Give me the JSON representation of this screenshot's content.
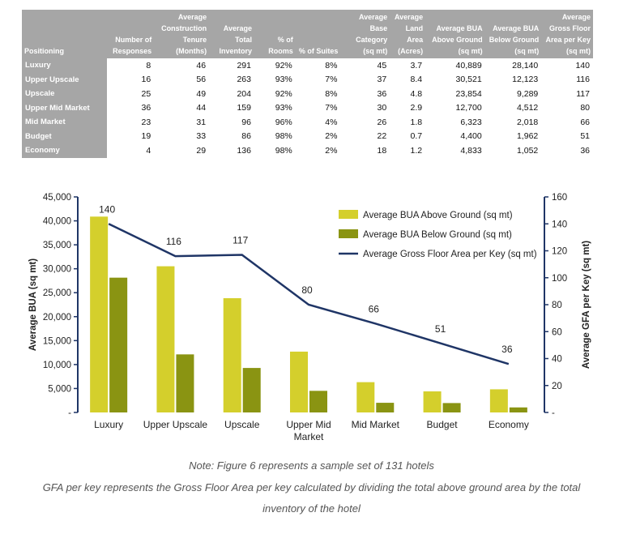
{
  "table": {
    "headers": [
      "Positioning",
      "Number of Responses",
      "Average Construction Tenure (Months)",
      "Average Total Inventory",
      "% of Rooms",
      "% of Suites",
      "Average Base Category (sq mt)",
      "Average Land Area (Acres)",
      "Average BUA Above Ground (sq mt)",
      "Average BUA Below Ground (sq mt)",
      "Average Gross Floor Area per Key (sq mt)"
    ],
    "rows": [
      [
        "Luxury",
        "8",
        "46",
        "291",
        "92%",
        "8%",
        "45",
        "3.7",
        "40,889",
        "28,140",
        "140"
      ],
      [
        "Upper Upscale",
        "16",
        "56",
        "263",
        "93%",
        "7%",
        "37",
        "8.4",
        "30,521",
        "12,123",
        "116"
      ],
      [
        "Upscale",
        "25",
        "49",
        "204",
        "92%",
        "8%",
        "36",
        "4.8",
        "23,854",
        "9,289",
        "117"
      ],
      [
        "Upper Mid Market",
        "36",
        "44",
        "159",
        "93%",
        "7%",
        "30",
        "2.9",
        "12,700",
        "4,512",
        "80"
      ],
      [
        "Mid Market",
        "23",
        "31",
        "96",
        "96%",
        "4%",
        "26",
        "1.8",
        "6,323",
        "2,018",
        "66"
      ],
      [
        "Budget",
        "19",
        "33",
        "86",
        "98%",
        "2%",
        "22",
        "0.7",
        "4,400",
        "1,962",
        "51"
      ],
      [
        "Economy",
        "4",
        "29",
        "136",
        "98%",
        "2%",
        "18",
        "1.2",
        "4,833",
        "1,052",
        "36"
      ]
    ]
  },
  "chart_data": {
    "type": "bar",
    "categories": [
      "Luxury",
      "Upper Upscale",
      "Upscale",
      "Upper Mid Market",
      "Mid Market",
      "Budget",
      "Economy"
    ],
    "series": [
      {
        "name": "Average BUA Above Ground (sq mt)",
        "kind": "bar",
        "axis": "left",
        "color": "#d4cf2c",
        "values": [
          40889,
          30521,
          23854,
          12700,
          6323,
          4400,
          4833
        ]
      },
      {
        "name": "Average BUA Below Ground (sq mt)",
        "kind": "bar",
        "axis": "left",
        "color": "#8a9412",
        "values": [
          28140,
          12123,
          9289,
          4512,
          2018,
          1962,
          1052
        ]
      },
      {
        "name": "Average Gross Floor Area per Key (sq mt)",
        "kind": "line",
        "axis": "right",
        "color": "#1f3566",
        "values": [
          140,
          116,
          117,
          80,
          66,
          51,
          36
        ]
      }
    ],
    "ylabel": "Average BUA (sq mt)",
    "y2label": "Average GFA per Key (sq mt)",
    "ylim": [
      0,
      45000
    ],
    "y2lim": [
      0,
      160
    ],
    "yticks": [
      "-",
      "5,000",
      "10,000",
      "15,000",
      "20,000",
      "25,000",
      "30,000",
      "35,000",
      "40,000",
      "45,000"
    ],
    "y2ticks": [
      "-",
      "20",
      "40",
      "60",
      "80",
      "100",
      "120",
      "140",
      "160"
    ],
    "legend_position": "top-right"
  },
  "notes": {
    "line1": "Note: Figure 6 represents a sample set of 131 hotels",
    "line2": "GFA per key represents the Gross Floor Area per key calculated by dividing the total above ground area by the total",
    "line3": "inventory of the hotel"
  }
}
